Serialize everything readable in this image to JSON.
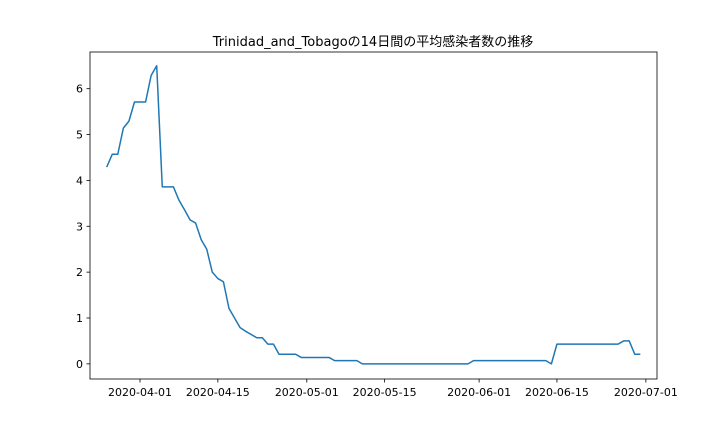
{
  "chart_data": {
    "type": "line",
    "title": "Trinidad_and_Tobagoの14日間の平均感染者数の推移",
    "xlabel": "",
    "ylabel": "",
    "x_range": [
      "2020-03-23",
      "2020-07-03"
    ],
    "ylim": [
      -0.33,
      6.8
    ],
    "grid": false,
    "x_ticks": [
      {
        "date": "2020-04-01",
        "label": "2020-04-01"
      },
      {
        "date": "2020-04-15",
        "label": "2020-04-15"
      },
      {
        "date": "2020-05-01",
        "label": "2020-05-01"
      },
      {
        "date": "2020-05-15",
        "label": "2020-05-15"
      },
      {
        "date": "2020-06-01",
        "label": "2020-06-01"
      },
      {
        "date": "2020-06-15",
        "label": "2020-06-15"
      },
      {
        "date": "2020-07-01",
        "label": "2020-07-01"
      }
    ],
    "y_ticks": [
      {
        "value": 0,
        "label": "0"
      },
      {
        "value": 1,
        "label": "1"
      },
      {
        "value": 2,
        "label": "2"
      },
      {
        "value": 3,
        "label": "3"
      },
      {
        "value": 4,
        "label": "4"
      },
      {
        "value": 5,
        "label": "5"
      },
      {
        "value": 6,
        "label": "6"
      }
    ],
    "series": [
      {
        "color": "#1f77b4",
        "points": [
          [
            "2020-03-26",
            4.29
          ],
          [
            "2020-03-27",
            4.57
          ],
          [
            "2020-03-28",
            4.57
          ],
          [
            "2020-03-29",
            5.14
          ],
          [
            "2020-03-30",
            5.29
          ],
          [
            "2020-03-31",
            5.71
          ],
          [
            "2020-04-01",
            5.71
          ],
          [
            "2020-04-02",
            5.71
          ],
          [
            "2020-04-03",
            6.29
          ],
          [
            "2020-04-04",
            6.5
          ],
          [
            "2020-04-05",
            3.86
          ],
          [
            "2020-04-06",
            3.86
          ],
          [
            "2020-04-07",
            3.86
          ],
          [
            "2020-04-08",
            3.57
          ],
          [
            "2020-04-09",
            3.36
          ],
          [
            "2020-04-10",
            3.14
          ],
          [
            "2020-04-11",
            3.07
          ],
          [
            "2020-04-12",
            2.71
          ],
          [
            "2020-04-13",
            2.5
          ],
          [
            "2020-04-14",
            2.0
          ],
          [
            "2020-04-15",
            1.86
          ],
          [
            "2020-04-16",
            1.79
          ],
          [
            "2020-04-17",
            1.21
          ],
          [
            "2020-04-18",
            1.0
          ],
          [
            "2020-04-19",
            0.79
          ],
          [
            "2020-04-20",
            0.71
          ],
          [
            "2020-04-21",
            0.64
          ],
          [
            "2020-04-22",
            0.57
          ],
          [
            "2020-04-23",
            0.57
          ],
          [
            "2020-04-24",
            0.43
          ],
          [
            "2020-04-25",
            0.43
          ],
          [
            "2020-04-26",
            0.21
          ],
          [
            "2020-04-27",
            0.21
          ],
          [
            "2020-04-28",
            0.21
          ],
          [
            "2020-04-29",
            0.21
          ],
          [
            "2020-04-30",
            0.14
          ],
          [
            "2020-05-01",
            0.14
          ],
          [
            "2020-05-02",
            0.14
          ],
          [
            "2020-05-03",
            0.14
          ],
          [
            "2020-05-04",
            0.14
          ],
          [
            "2020-05-05",
            0.14
          ],
          [
            "2020-05-06",
            0.07
          ],
          [
            "2020-05-07",
            0.07
          ],
          [
            "2020-05-08",
            0.07
          ],
          [
            "2020-05-09",
            0.07
          ],
          [
            "2020-05-10",
            0.07
          ],
          [
            "2020-05-11",
            0.0
          ],
          [
            "2020-05-12",
            0.0
          ],
          [
            "2020-05-13",
            0.0
          ],
          [
            "2020-05-14",
            0.0
          ],
          [
            "2020-05-15",
            0.0
          ],
          [
            "2020-05-16",
            0.0
          ],
          [
            "2020-05-17",
            0.0
          ],
          [
            "2020-05-18",
            0.0
          ],
          [
            "2020-05-19",
            0.0
          ],
          [
            "2020-05-20",
            0.0
          ],
          [
            "2020-05-21",
            0.0
          ],
          [
            "2020-05-22",
            0.0
          ],
          [
            "2020-05-23",
            0.0
          ],
          [
            "2020-05-24",
            0.0
          ],
          [
            "2020-05-25",
            0.0
          ],
          [
            "2020-05-26",
            0.0
          ],
          [
            "2020-05-27",
            0.0
          ],
          [
            "2020-05-28",
            0.0
          ],
          [
            "2020-05-29",
            0.0
          ],
          [
            "2020-05-30",
            0.0
          ],
          [
            "2020-05-31",
            0.07
          ],
          [
            "2020-06-01",
            0.07
          ],
          [
            "2020-06-02",
            0.07
          ],
          [
            "2020-06-03",
            0.07
          ],
          [
            "2020-06-04",
            0.07
          ],
          [
            "2020-06-05",
            0.07
          ],
          [
            "2020-06-06",
            0.07
          ],
          [
            "2020-06-07",
            0.07
          ],
          [
            "2020-06-08",
            0.07
          ],
          [
            "2020-06-09",
            0.07
          ],
          [
            "2020-06-10",
            0.07
          ],
          [
            "2020-06-11",
            0.07
          ],
          [
            "2020-06-12",
            0.07
          ],
          [
            "2020-06-13",
            0.07
          ],
          [
            "2020-06-14",
            0.0
          ],
          [
            "2020-06-15",
            0.43
          ],
          [
            "2020-06-16",
            0.43
          ],
          [
            "2020-06-17",
            0.43
          ],
          [
            "2020-06-18",
            0.43
          ],
          [
            "2020-06-19",
            0.43
          ],
          [
            "2020-06-20",
            0.43
          ],
          [
            "2020-06-21",
            0.43
          ],
          [
            "2020-06-22",
            0.43
          ],
          [
            "2020-06-23",
            0.43
          ],
          [
            "2020-06-24",
            0.43
          ],
          [
            "2020-06-25",
            0.43
          ],
          [
            "2020-06-26",
            0.43
          ],
          [
            "2020-06-27",
            0.5
          ],
          [
            "2020-06-28",
            0.5
          ],
          [
            "2020-06-29",
            0.21
          ],
          [
            "2020-06-30",
            0.21
          ]
        ]
      }
    ]
  }
}
